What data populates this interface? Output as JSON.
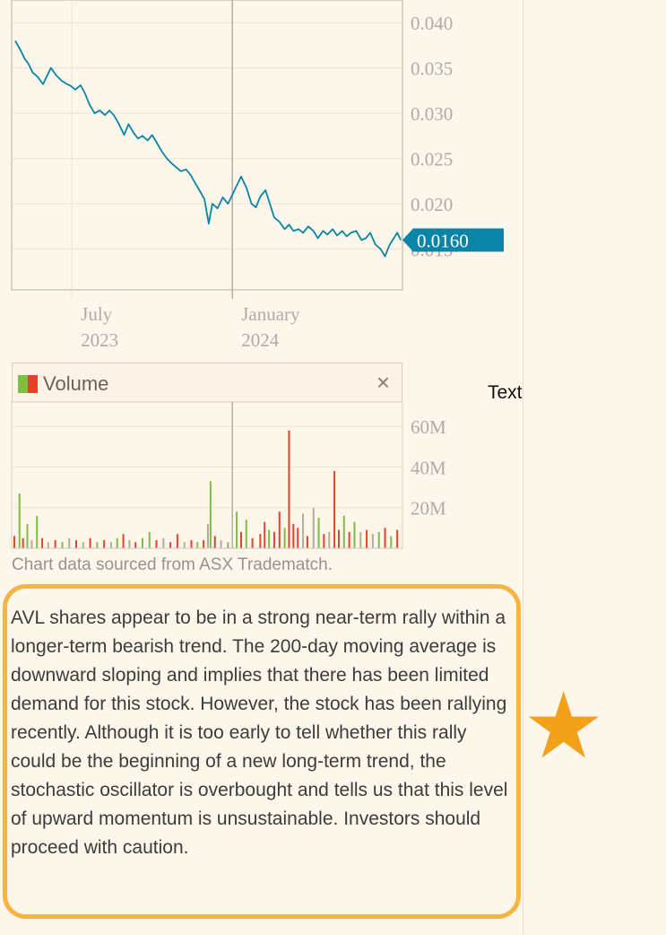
{
  "chart_data": [
    {
      "type": "line",
      "series": [
        {
          "values_by_date": [
            [
              "2023-04-27",
              0.038
            ],
            [
              "2023-05-03",
              0.037
            ],
            [
              "2023-05-08",
              0.036
            ],
            [
              "2023-05-12",
              0.0355
            ],
            [
              "2023-05-17",
              0.0345
            ],
            [
              "2023-05-23",
              0.034
            ],
            [
              "2023-05-29",
              0.0332
            ],
            [
              "2023-06-02",
              0.034
            ],
            [
              "2023-06-07",
              0.035
            ],
            [
              "2023-06-13",
              0.0342
            ],
            [
              "2023-06-19",
              0.0336
            ],
            [
              "2023-06-24",
              0.0333
            ],
            [
              "2023-06-30",
              0.033
            ],
            [
              "2023-07-05",
              0.0326
            ],
            [
              "2023-07-11",
              0.0331
            ],
            [
              "2023-07-16",
              0.0322
            ],
            [
              "2023-07-21",
              0.031
            ],
            [
              "2023-07-27",
              0.03
            ],
            [
              "2023-08-02",
              0.0303
            ],
            [
              "2023-08-08",
              0.0298
            ],
            [
              "2023-08-13",
              0.0303
            ],
            [
              "2023-08-18",
              0.0298
            ],
            [
              "2023-08-24",
              0.0288
            ],
            [
              "2023-08-30",
              0.0276
            ],
            [
              "2023-09-04",
              0.0288
            ],
            [
              "2023-09-10",
              0.0278
            ],
            [
              "2023-09-15",
              0.0272
            ],
            [
              "2023-09-20",
              0.0275
            ],
            [
              "2023-09-26",
              0.027
            ],
            [
              "2023-10-01",
              0.0276
            ],
            [
              "2023-10-06",
              0.0268
            ],
            [
              "2023-10-12",
              0.0258
            ],
            [
              "2023-10-18",
              0.025
            ],
            [
              "2023-10-23",
              0.0245
            ],
            [
              "2023-10-29",
              0.024
            ],
            [
              "2023-11-03",
              0.0236
            ],
            [
              "2023-11-09",
              0.0238
            ],
            [
              "2023-11-14",
              0.0232
            ],
            [
              "2023-11-20",
              0.0222
            ],
            [
              "2023-11-26",
              0.0212
            ],
            [
              "2023-11-30",
              0.0205
            ],
            [
              "2023-12-05",
              0.0178
            ],
            [
              "2023-12-09",
              0.02
            ],
            [
              "2023-12-15",
              0.0195
            ],
            [
              "2023-12-21",
              0.0207
            ],
            [
              "2023-12-27",
              0.02
            ],
            [
              "2024-01-01",
              0.021
            ],
            [
              "2024-01-06",
              0.022
            ],
            [
              "2024-01-11",
              0.023
            ],
            [
              "2024-01-17",
              0.0218
            ],
            [
              "2024-01-23",
              0.02
            ],
            [
              "2024-01-28",
              0.0196
            ],
            [
              "2024-02-02",
              0.0208
            ],
            [
              "2024-02-08",
              0.0215
            ],
            [
              "2024-02-13",
              0.02
            ],
            [
              "2024-02-18",
              0.0185
            ],
            [
              "2024-02-24",
              0.018
            ],
            [
              "2024-03-01",
              0.0172
            ],
            [
              "2024-03-06",
              0.0177
            ],
            [
              "2024-03-11",
              0.017
            ],
            [
              "2024-03-17",
              0.0172
            ],
            [
              "2024-03-22",
              0.0168
            ],
            [
              "2024-03-28",
              0.0175
            ],
            [
              "2024-04-03",
              0.017
            ],
            [
              "2024-04-08",
              0.0162
            ],
            [
              "2024-04-14",
              0.017
            ],
            [
              "2024-04-19",
              0.0166
            ],
            [
              "2024-04-25",
              0.0172
            ],
            [
              "2024-04-30",
              0.0165
            ],
            [
              "2024-05-06",
              0.017
            ],
            [
              "2024-05-11",
              0.0164
            ],
            [
              "2024-05-16",
              0.0168
            ],
            [
              "2024-05-22",
              0.017
            ],
            [
              "2024-05-28",
              0.016
            ],
            [
              "2024-06-02",
              0.0162
            ],
            [
              "2024-06-07",
              0.0168
            ],
            [
              "2024-06-13",
              0.0155
            ],
            [
              "2024-06-19",
              0.015
            ],
            [
              "2024-06-24",
              0.0142
            ],
            [
              "2024-06-29",
              0.0154
            ],
            [
              "2024-07-04",
              0.0162
            ],
            [
              "2024-07-08",
              0.0168
            ],
            [
              "2024-07-12",
              0.016
            ]
          ]
        }
      ],
      "x_ticks": [
        {
          "date": "2023-07-01",
          "line1": "July",
          "line2": "2023"
        },
        {
          "date": "2024-01-01",
          "line1": "January",
          "line2": "2024"
        }
      ],
      "y_ticks": [
        "0.040",
        "0.035",
        "0.030",
        "0.025",
        "0.020",
        "0.015"
      ],
      "ylim": [
        0.0105,
        0.0425
      ],
      "xlim": [
        "2023-04-23",
        "2024-07-14"
      ],
      "last_price_label": "0.0160",
      "grid": true,
      "color": "#0b84a5"
    },
    {
      "type": "bar",
      "title": "Volume",
      "y_ticks": [
        "60M",
        "40M",
        "20M"
      ],
      "ylim": [
        0,
        72
      ],
      "colors": {
        "up": "#7fbf3f",
        "down": "#e8402a",
        "flat": "#b5aaa0"
      },
      "bars": [
        {
          "date": "2023-04-26",
          "v": 6,
          "c": "down"
        },
        {
          "date": "2023-05-02",
          "v": 27,
          "c": "up"
        },
        {
          "date": "2023-05-06",
          "v": 5,
          "c": "down"
        },
        {
          "date": "2023-05-11",
          "v": 12,
          "c": "up"
        },
        {
          "date": "2023-05-16",
          "v": 4,
          "c": "flat"
        },
        {
          "date": "2023-05-22",
          "v": 16,
          "c": "up"
        },
        {
          "date": "2023-05-28",
          "v": 5,
          "c": "down"
        },
        {
          "date": "2023-06-04",
          "v": 3,
          "c": "flat"
        },
        {
          "date": "2023-06-12",
          "v": 4,
          "c": "down"
        },
        {
          "date": "2023-06-20",
          "v": 3,
          "c": "up"
        },
        {
          "date": "2023-06-28",
          "v": 5,
          "c": "flat"
        },
        {
          "date": "2023-07-06",
          "v": 4,
          "c": "down"
        },
        {
          "date": "2023-07-14",
          "v": 3,
          "c": "flat"
        },
        {
          "date": "2023-07-22",
          "v": 5,
          "c": "down"
        },
        {
          "date": "2023-07-30",
          "v": 3,
          "c": "up"
        },
        {
          "date": "2023-08-07",
          "v": 4,
          "c": "down"
        },
        {
          "date": "2023-08-15",
          "v": 3,
          "c": "flat"
        },
        {
          "date": "2023-08-22",
          "v": 5,
          "c": "up"
        },
        {
          "date": "2023-08-29",
          "v": 7,
          "c": "down"
        },
        {
          "date": "2023-09-05",
          "v": 4,
          "c": "flat"
        },
        {
          "date": "2023-09-12",
          "v": 3,
          "c": "down"
        },
        {
          "date": "2023-09-20",
          "v": 5,
          "c": "up"
        },
        {
          "date": "2023-09-28",
          "v": 8,
          "c": "up"
        },
        {
          "date": "2023-10-06",
          "v": 4,
          "c": "down"
        },
        {
          "date": "2023-10-14",
          "v": 5,
          "c": "flat"
        },
        {
          "date": "2023-10-22",
          "v": 3,
          "c": "down"
        },
        {
          "date": "2023-10-30",
          "v": 7,
          "c": "down"
        },
        {
          "date": "2023-11-07",
          "v": 3,
          "c": "flat"
        },
        {
          "date": "2023-11-15",
          "v": 4,
          "c": "down"
        },
        {
          "date": "2023-11-22",
          "v": 3,
          "c": "up"
        },
        {
          "date": "2023-11-29",
          "v": 4,
          "c": "down"
        },
        {
          "date": "2023-12-04",
          "v": 12,
          "c": "flat"
        },
        {
          "date": "2023-12-07",
          "v": 33,
          "c": "up"
        },
        {
          "date": "2023-12-12",
          "v": 6,
          "c": "down"
        },
        {
          "date": "2023-12-19",
          "v": 4,
          "c": "flat"
        },
        {
          "date": "2023-12-27",
          "v": 3,
          "c": "up"
        },
        {
          "date": "2024-01-06",
          "v": 18,
          "c": "up"
        },
        {
          "date": "2024-01-11",
          "v": 8,
          "c": "down"
        },
        {
          "date": "2024-01-17",
          "v": 14,
          "c": "up"
        },
        {
          "date": "2024-01-24",
          "v": 5,
          "c": "down"
        },
        {
          "date": "2024-02-02",
          "v": 7,
          "c": "down"
        },
        {
          "date": "2024-02-07",
          "v": 13,
          "c": "down"
        },
        {
          "date": "2024-02-12",
          "v": 9,
          "c": "up"
        },
        {
          "date": "2024-02-18",
          "v": 8,
          "c": "down"
        },
        {
          "date": "2024-02-24",
          "v": 18,
          "c": "down"
        },
        {
          "date": "2024-03-01",
          "v": 10,
          "c": "up"
        },
        {
          "date": "2024-03-06",
          "v": 58,
          "c": "down"
        },
        {
          "date": "2024-03-11",
          "v": 12,
          "c": "down"
        },
        {
          "date": "2024-03-16",
          "v": 10,
          "c": "down"
        },
        {
          "date": "2024-03-22",
          "v": 17,
          "c": "flat"
        },
        {
          "date": "2024-03-27",
          "v": 6,
          "c": "down"
        },
        {
          "date": "2024-04-03",
          "v": 20,
          "c": "flat"
        },
        {
          "date": "2024-04-09",
          "v": 15,
          "c": "up"
        },
        {
          "date": "2024-04-15",
          "v": 7,
          "c": "down"
        },
        {
          "date": "2024-04-21",
          "v": 8,
          "c": "flat"
        },
        {
          "date": "2024-04-27",
          "v": 38,
          "c": "down"
        },
        {
          "date": "2024-05-02",
          "v": 9,
          "c": "down"
        },
        {
          "date": "2024-05-08",
          "v": 16,
          "c": "up"
        },
        {
          "date": "2024-05-14",
          "v": 8,
          "c": "down"
        },
        {
          "date": "2024-05-20",
          "v": 13,
          "c": "up"
        },
        {
          "date": "2024-05-27",
          "v": 8,
          "c": "flat"
        },
        {
          "date": "2024-06-03",
          "v": 9,
          "c": "down"
        },
        {
          "date": "2024-06-10",
          "v": 7,
          "c": "flat"
        },
        {
          "date": "2024-06-17",
          "v": 8,
          "c": "up"
        },
        {
          "date": "2024-06-24",
          "v": 10,
          "c": "down"
        },
        {
          "date": "2024-07-01",
          "v": 6,
          "c": "up"
        },
        {
          "date": "2024-07-08",
          "v": 9,
          "c": "down"
        }
      ]
    }
  ],
  "volume_panel": {
    "label": "Volume",
    "close_symbol": "×"
  },
  "source_note": "Chart data sourced from ASX Tradematch.",
  "side_label": "Text",
  "commentary": "AVL shares appear to be in a strong near-term rally within a longer-term bearish trend. The 200-day moving average is downward sloping and implies that there has been limited demand for this stock. However, the stock has been rallying recently. Although it is too early to tell whether this rally could be the beginning of a new long-term trend, the stochastic oscillator is overbought and tells us that this level of upward momentum is unsustainable. Investors should proceed with caution.",
  "star_symbol": "★",
  "colors": {
    "highlight_box": "#f7b443",
    "star": "#f4a11a",
    "price_line": "#0b84a5"
  }
}
